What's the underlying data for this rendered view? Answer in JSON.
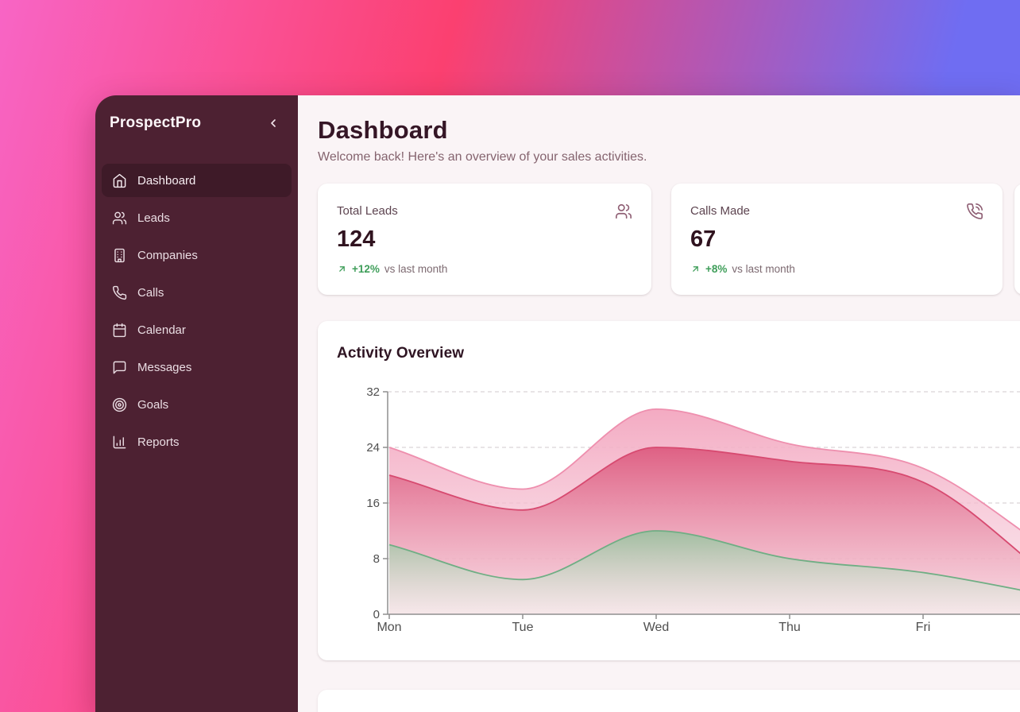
{
  "colors": {
    "bg_gradient": [
      "#f865c5",
      "#fb4070",
      "#6f6df2"
    ],
    "sidebar_bg": "#4d2132",
    "sidebar_active_bg": "#3e1a28",
    "main_bg": "#faf4f6",
    "heading_text": "#351626",
    "muted_text": "#85646f",
    "positive_green": "#3f9e5a",
    "card_icon_rose": "#8f5f74"
  },
  "sidebar": {
    "brand": "ProspectPro",
    "collapse_icon": "chevron-left",
    "items": [
      {
        "label": "Dashboard",
        "icon": "home",
        "active": true
      },
      {
        "label": "Leads",
        "icon": "users",
        "active": false
      },
      {
        "label": "Companies",
        "icon": "building",
        "active": false
      },
      {
        "label": "Calls",
        "icon": "phone",
        "active": false
      },
      {
        "label": "Calendar",
        "icon": "calendar",
        "active": false
      },
      {
        "label": "Messages",
        "icon": "message-square",
        "active": false
      },
      {
        "label": "Goals",
        "icon": "target",
        "active": false
      },
      {
        "label": "Reports",
        "icon": "bar-chart",
        "active": false
      }
    ]
  },
  "header": {
    "title": "Dashboard",
    "subtitle": "Welcome back! Here's an overview of your sales activities."
  },
  "stats": [
    {
      "label": "Total Leads",
      "value": "124",
      "delta": "+12%",
      "delta_note": "vs last month",
      "trend": "up",
      "icon": "users"
    },
    {
      "label": "Calls Made",
      "value": "67",
      "delta": "+8%",
      "delta_note": "vs last month",
      "trend": "up",
      "icon": "phone-call"
    }
  ],
  "chart_data": {
    "type": "area",
    "title": "Activity Overview",
    "x_labels": [
      "Mon",
      "Tue",
      "Wed",
      "Thu",
      "Fri"
    ],
    "x_note": "chart continues past right edge of viewport; curves are cut off after Fri",
    "yticks": [
      0,
      8,
      16,
      24,
      32
    ],
    "ylim": [
      0,
      32
    ],
    "grid": "dashed-horizontal",
    "legend": "none",
    "series": [
      {
        "name": "area-back-light-pink",
        "stroke": "#ee8fae",
        "fill_from": "#f3a6bf",
        "fill_to": "#f7d8e3",
        "values": [
          24,
          18,
          29.5,
          24.5,
          21,
          8.5
        ]
      },
      {
        "name": "area-mid-rose",
        "stroke": "#d74a70",
        "fill_from": "#dd5c80",
        "fill_to": "#f6cdd9",
        "values": [
          20,
          15,
          24,
          22,
          19,
          4.5
        ]
      },
      {
        "name": "area-front-green",
        "stroke": "#6fae84",
        "fill_from": "#9cbf9f",
        "fill_to": "#f5f2ef",
        "values": [
          10,
          5,
          12,
          8,
          6,
          2.5
        ]
      }
    ]
  }
}
